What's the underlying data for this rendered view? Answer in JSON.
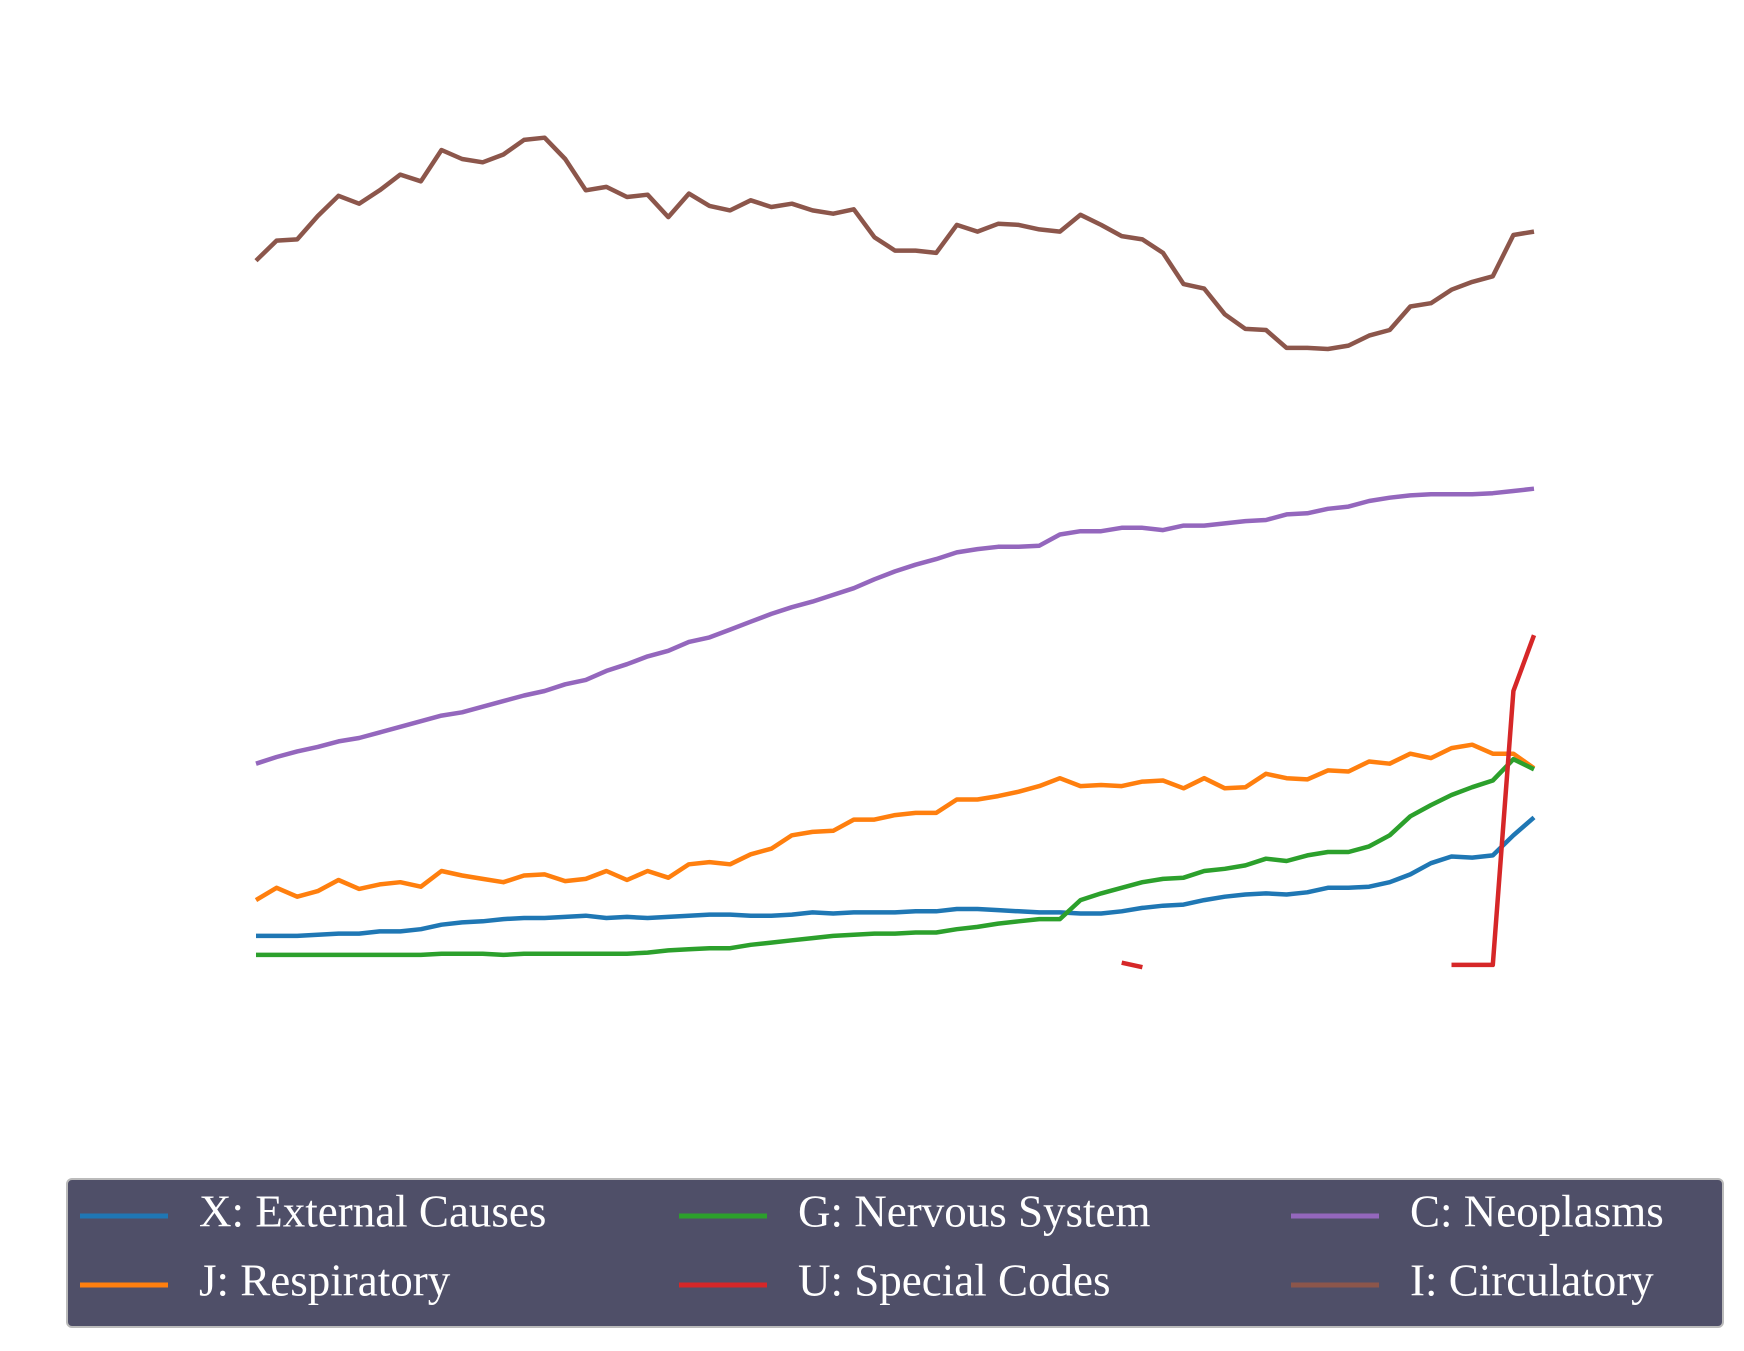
{
  "chart_data": {
    "type": "line",
    "categories": [
      null,
      null,
      null,
      null,
      null,
      null,
      null,
      null,
      null,
      null,
      null,
      null,
      null,
      null,
      null,
      null,
      null,
      null,
      null,
      null,
      null,
      null,
      null,
      null,
      null,
      null,
      null,
      null,
      null,
      null,
      null,
      null,
      null,
      null,
      null,
      null,
      null,
      null,
      null,
      null,
      null,
      null,
      null,
      null,
      null,
      null,
      null,
      null,
      null,
      null,
      null,
      null,
      null,
      null,
      null,
      null,
      null,
      null,
      null,
      null,
      null,
      null,
      null
    ],
    "ylim": [
      -60,
      780
    ],
    "series": [
      {
        "name": "X: External Causes",
        "color": "#1f77b4",
        "values": [
          43,
          43,
          43,
          44,
          45,
          45,
          47,
          47,
          49,
          53,
          55,
          56,
          58,
          59,
          59,
          60,
          61,
          59,
          60,
          59,
          60,
          61,
          62,
          62,
          61,
          61,
          62,
          64,
          63,
          64,
          64,
          64,
          65,
          65,
          67,
          67,
          66,
          65,
          64,
          64,
          63,
          63,
          65,
          68,
          70,
          71,
          75,
          78,
          80,
          81,
          80,
          82,
          86,
          86,
          87,
          91,
          98,
          108,
          114,
          113,
          115,
          133,
          149
        ]
      },
      {
        "name": "J: Respiratory",
        "color": "#ff7f0e",
        "values": [
          75,
          86,
          78,
          83,
          93,
          85,
          89,
          91,
          87,
          101,
          97,
          94,
          91,
          97,
          98,
          92,
          94,
          101,
          93,
          101,
          95,
          107,
          109,
          107,
          116,
          121,
          133,
          136,
          137,
          147,
          147,
          151,
          153,
          153,
          165,
          165,
          168,
          172,
          177,
          184,
          177,
          178,
          177,
          181,
          182,
          175,
          184,
          175,
          176,
          188,
          184,
          183,
          191,
          190,
          199,
          197,
          206,
          202,
          211,
          214,
          206,
          206,
          193
        ]
      },
      {
        "name": "G: Nervous System",
        "color": "#2ca02c",
        "values": [
          26,
          26,
          26,
          26,
          26,
          26,
          26,
          26,
          26,
          27,
          27,
          27,
          26,
          27,
          27,
          27,
          27,
          27,
          27,
          28,
          30,
          31,
          32,
          32,
          35,
          37,
          39,
          41,
          43,
          44,
          45,
          45,
          46,
          46,
          49,
          51,
          54,
          56,
          58,
          58,
          75,
          81,
          86,
          91,
          94,
          95,
          101,
          103,
          106,
          112,
          110,
          115,
          118,
          118,
          123,
          133,
          150,
          160,
          169,
          176,
          182,
          201,
          192
        ]
      },
      {
        "name": "U: Special Codes",
        "color": "#d62728",
        "values": [
          null,
          null,
          null,
          null,
          null,
          null,
          null,
          null,
          null,
          null,
          null,
          null,
          null,
          null,
          null,
          null,
          null,
          null,
          null,
          null,
          null,
          null,
          null,
          null,
          null,
          null,
          null,
          null,
          null,
          null,
          null,
          null,
          null,
          null,
          null,
          null,
          null,
          null,
          null,
          null,
          null,
          null,
          19,
          15,
          null,
          null,
          null,
          null,
          null,
          null,
          null,
          null,
          null,
          null,
          null,
          null,
          null,
          null,
          17,
          17,
          17,
          262,
          312
        ]
      },
      {
        "name": "C: Neoplasms",
        "color": "#9467bd",
        "values": [
          197,
          203,
          208,
          212,
          217,
          220,
          225,
          230,
          235,
          240,
          243,
          248,
          253,
          258,
          262,
          268,
          272,
          280,
          286,
          293,
          298,
          306,
          310,
          317,
          324,
          331,
          337,
          342,
          348,
          354,
          362,
          369,
          375,
          380,
          386,
          389,
          391,
          391,
          392,
          402,
          405,
          405,
          408,
          408,
          406,
          410,
          410,
          412,
          414,
          415,
          420,
          421,
          425,
          427,
          432,
          435,
          437,
          438,
          438,
          438,
          439,
          441,
          443
        ]
      },
      {
        "name": "I: Circulatory",
        "color": "#8c564b",
        "values": [
          647,
          665,
          666,
          687,
          705,
          698,
          710,
          724,
          718,
          746,
          738,
          735,
          742,
          755,
          757,
          738,
          710,
          713,
          704,
          706,
          686,
          707,
          696,
          692,
          701,
          695,
          698,
          692,
          689,
          693,
          668,
          656,
          656,
          654,
          679,
          673,
          680,
          679,
          675,
          673,
          688,
          679,
          669,
          666,
          654,
          626,
          622,
          599,
          586,
          585,
          569,
          569,
          568,
          571,
          580,
          585,
          606,
          609,
          621,
          628,
          633,
          670,
          673
        ]
      }
    ]
  }
}
